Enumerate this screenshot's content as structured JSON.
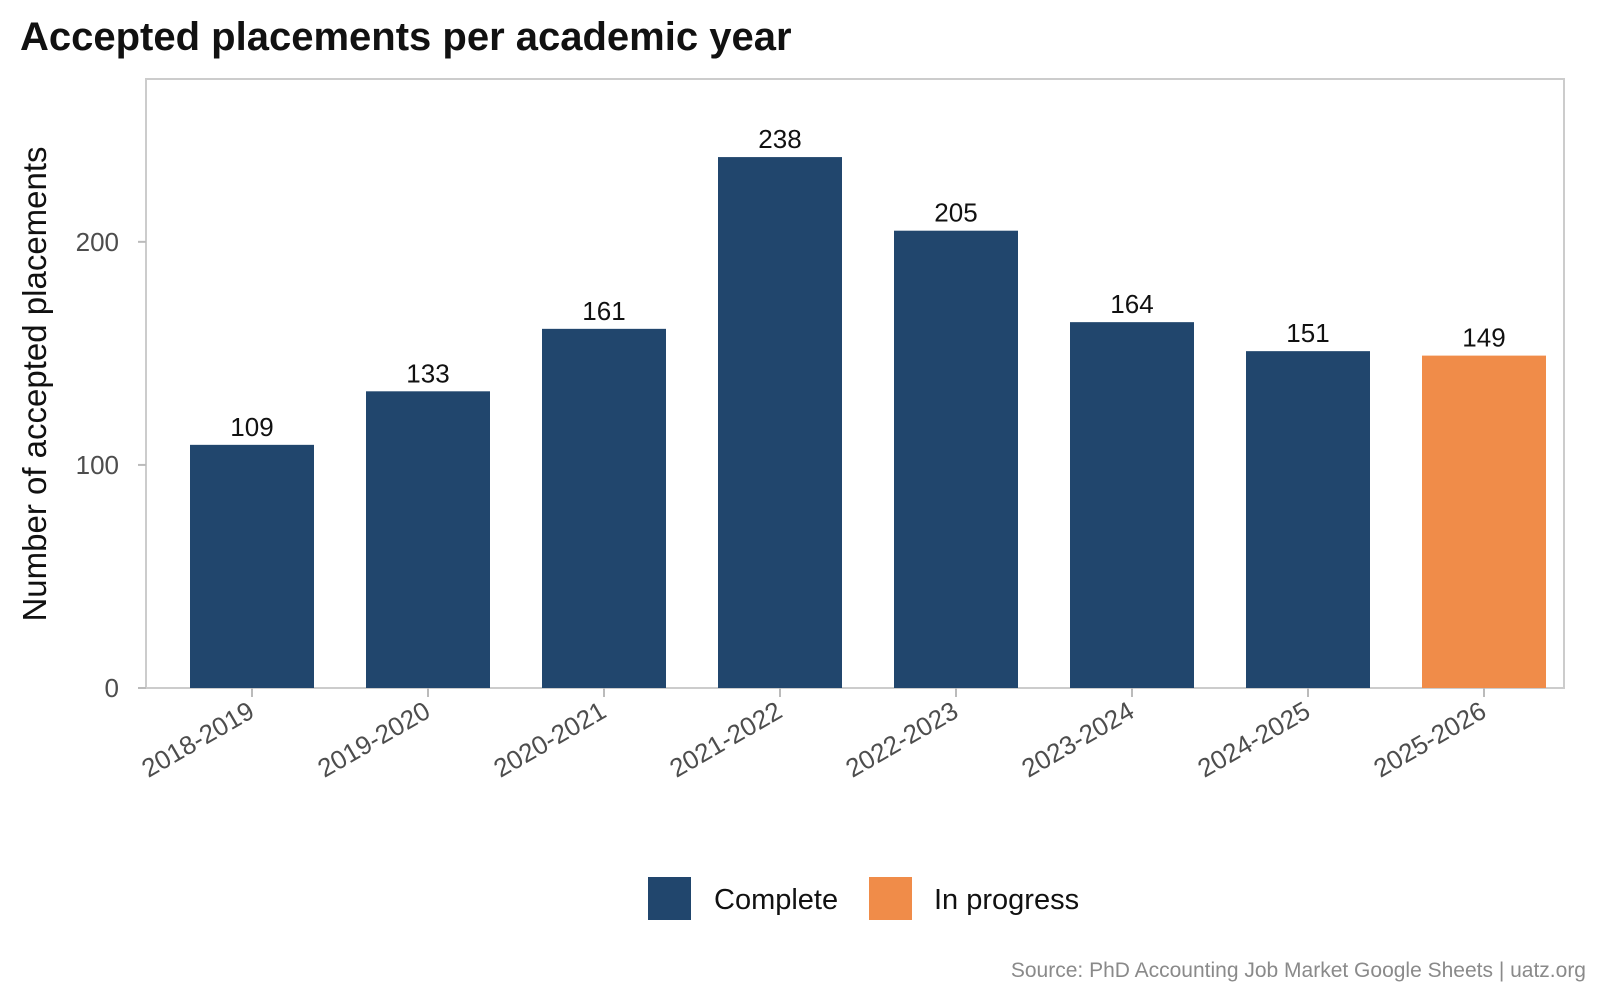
{
  "chart_data": {
    "type": "bar",
    "title": "Accepted placements per academic year",
    "xlabel": "",
    "ylabel": "Number of accepted placements",
    "categories": [
      "2018-2019",
      "2019-2020",
      "2020-2021",
      "2021-2022",
      "2022-2023",
      "2023-2024",
      "2024-2025",
      "2025-2026"
    ],
    "values": [
      109,
      133,
      161,
      238,
      205,
      164,
      151,
      149
    ],
    "status": [
      "Complete",
      "Complete",
      "Complete",
      "Complete",
      "Complete",
      "Complete",
      "Complete",
      "In progress"
    ],
    "yticks": [
      0,
      100,
      200
    ],
    "ylim": [
      0,
      273
    ],
    "grid": false,
    "legend": {
      "placement": "bottom-center",
      "entries": [
        {
          "label": "Complete",
          "color": "#21466d"
        },
        {
          "label": "In progress",
          "color": "#f08c49"
        }
      ]
    },
    "source": "Source: PhD Accounting Job Market Google Sheets | uatz.org"
  }
}
